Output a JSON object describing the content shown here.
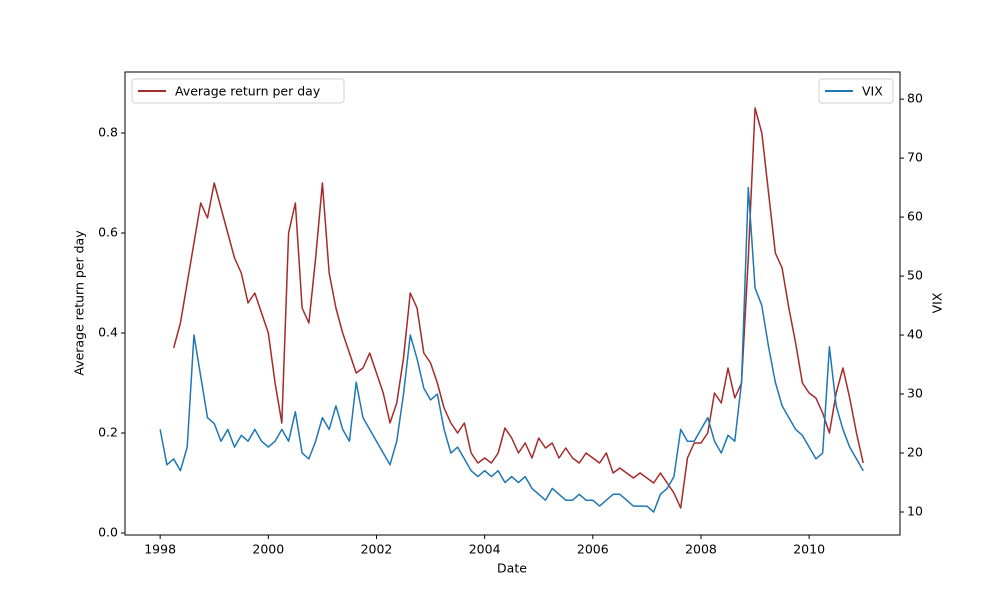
{
  "chart_data": {
    "type": "line",
    "x_label": "Date",
    "y_label": "Average return per day",
    "y2_label": "VIX",
    "x": [
      1998.0,
      1998.125,
      1998.25,
      1998.375,
      1998.5,
      1998.625,
      1998.75,
      1998.875,
      1999.0,
      1999.125,
      1999.25,
      1999.375,
      1999.5,
      1999.625,
      1999.75,
      1999.875,
      2000.0,
      2000.125,
      2000.25,
      2000.375,
      2000.5,
      2000.625,
      2000.75,
      2000.875,
      2001.0,
      2001.125,
      2001.25,
      2001.375,
      2001.5,
      2001.625,
      2001.75,
      2001.875,
      2002.0,
      2002.125,
      2002.25,
      2002.375,
      2002.5,
      2002.625,
      2002.75,
      2002.875,
      2003.0,
      2003.125,
      2003.25,
      2003.375,
      2003.5,
      2003.625,
      2003.75,
      2003.875,
      2004.0,
      2004.125,
      2004.25,
      2004.375,
      2004.5,
      2004.625,
      2004.75,
      2004.875,
      2005.0,
      2005.125,
      2005.25,
      2005.375,
      2005.5,
      2005.625,
      2005.75,
      2005.875,
      2006.0,
      2006.125,
      2006.25,
      2006.375,
      2006.5,
      2006.625,
      2006.75,
      2006.875,
      2007.0,
      2007.125,
      2007.25,
      2007.375,
      2007.5,
      2007.625,
      2007.75,
      2007.875,
      2008.0,
      2008.125,
      2008.25,
      2008.375,
      2008.5,
      2008.625,
      2008.75,
      2008.875,
      2009.0,
      2009.125,
      2009.25,
      2009.375,
      2009.5,
      2009.625,
      2009.75,
      2009.875,
      2010.0,
      2010.125,
      2010.25,
      2010.375,
      2010.5,
      2010.625,
      2010.75,
      2010.875,
      2011.0
    ],
    "series": [
      {
        "name": "Average return per day",
        "color": "#a52a2a",
        "axis": "y",
        "values": [
          null,
          null,
          0.37,
          0.42,
          0.5,
          0.58,
          0.66,
          0.63,
          0.7,
          0.65,
          0.6,
          0.55,
          0.52,
          0.46,
          0.48,
          0.44,
          0.4,
          0.3,
          0.22,
          0.6,
          0.66,
          0.45,
          0.42,
          0.55,
          0.7,
          0.52,
          0.45,
          0.4,
          0.36,
          0.32,
          0.33,
          0.36,
          0.32,
          0.28,
          0.22,
          0.26,
          0.35,
          0.48,
          0.45,
          0.36,
          0.34,
          0.3,
          0.25,
          0.22,
          0.2,
          0.22,
          0.16,
          0.14,
          0.15,
          0.14,
          0.16,
          0.21,
          0.19,
          0.16,
          0.18,
          0.15,
          0.19,
          0.17,
          0.18,
          0.15,
          0.17,
          0.15,
          0.14,
          0.16,
          0.15,
          0.14,
          0.16,
          0.12,
          0.13,
          0.12,
          0.11,
          0.12,
          0.11,
          0.1,
          0.12,
          0.1,
          0.08,
          0.05,
          0.15,
          0.18,
          0.18,
          0.2,
          0.28,
          0.26,
          0.33,
          0.27,
          0.3,
          0.55,
          0.85,
          0.8,
          0.68,
          0.56,
          0.53,
          0.45,
          0.38,
          0.3,
          0.28,
          0.27,
          0.24,
          0.2,
          0.28,
          0.33,
          0.27,
          0.2,
          0.14
        ]
      },
      {
        "name": "VIX",
        "color": "#1f77b4",
        "axis": "y2",
        "values": [
          24,
          18,
          19,
          17,
          21,
          40,
          33,
          26,
          25,
          22,
          24,
          21,
          23,
          22,
          24,
          22,
          21,
          22,
          24,
          22,
          27,
          20,
          19,
          22,
          26,
          24,
          28,
          24,
          22,
          32,
          26,
          24,
          22,
          20,
          18,
          22,
          30,
          40,
          36,
          31,
          29,
          30,
          24,
          20,
          21,
          19,
          17,
          16,
          17,
          16,
          17,
          15,
          16,
          15,
          16,
          14,
          13,
          12,
          14,
          13,
          12,
          12,
          13,
          12,
          12,
          11,
          12,
          13,
          13,
          12,
          11,
          11,
          11,
          10,
          13,
          14,
          16,
          24,
          22,
          22,
          24,
          26,
          22,
          20,
          23,
          22,
          32,
          65,
          48,
          45,
          38,
          32,
          28,
          26,
          24,
          23,
          21,
          19,
          20,
          38,
          28,
          24,
          21,
          19,
          17
        ]
      }
    ],
    "xlim": [
      1997.35,
      2011.68
    ],
    "xticks": [
      1998,
      2000,
      2002,
      2004,
      2006,
      2008,
      2010
    ],
    "ylim": [
      -0.004,
      0.922
    ],
    "yticks": [
      {
        "value": 0,
        "label": "0.0"
      },
      0.2,
      0.4,
      0.6,
      0.8
    ],
    "y2lim": [
      6.1,
      84.6
    ],
    "y2ticks": [
      10,
      20,
      30,
      40,
      50,
      60,
      70,
      80
    ],
    "grid": false,
    "legend": "upper left",
    "legend2": "upper right"
  }
}
